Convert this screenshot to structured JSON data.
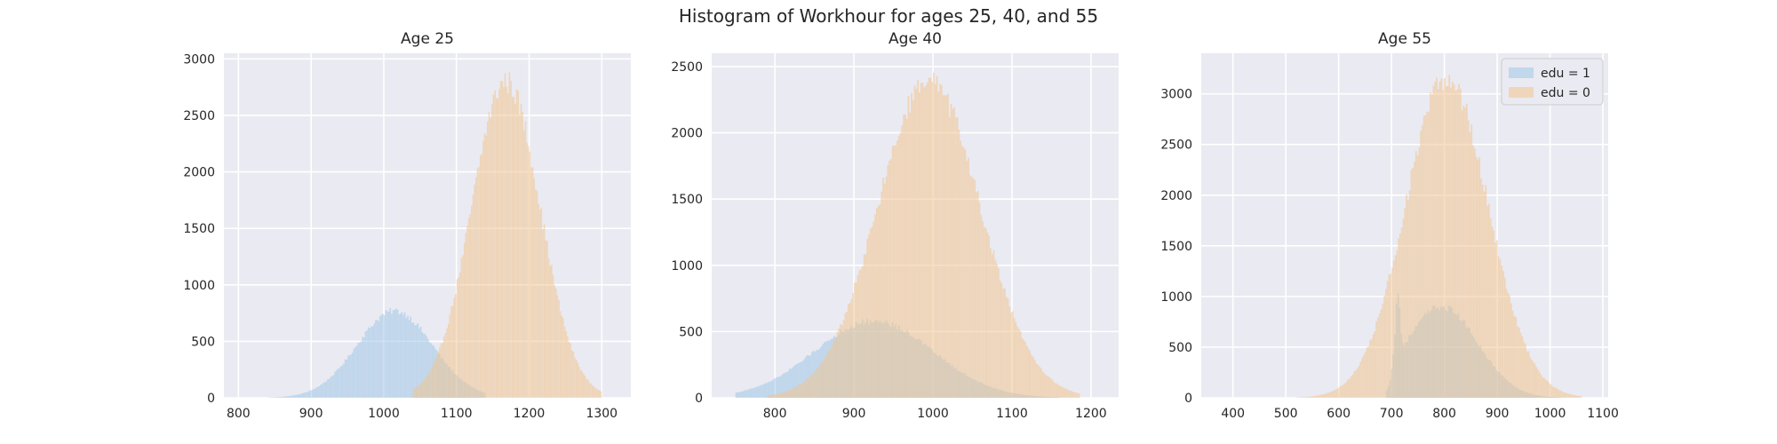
{
  "figure_title": "Histogram of Workhour for ages 25, 40, and 55",
  "colors": {
    "edu1": "#9ec7e6",
    "edu0": "#f2c48e",
    "plot_bg": "#eaeaf2",
    "grid": "#ffffff",
    "text": "#262626"
  },
  "chart_data": [
    {
      "type": "bar",
      "title": "Age 25",
      "xlim": [
        780,
        1340
      ],
      "ylim": [
        0,
        3050
      ],
      "xticks": [
        800,
        900,
        1000,
        1100,
        1200,
        1300
      ],
      "yticks": [
        0,
        500,
        1000,
        1500,
        2000,
        2500,
        3000
      ],
      "bin_width": 2,
      "grid": true,
      "series": [
        {
          "name": "edu = 1",
          "mean": 1015,
          "sd": 52,
          "peak": 770,
          "min": 840,
          "max": 1140,
          "color": "#9ec7e6"
        },
        {
          "name": "edu = 0",
          "mean": 1168,
          "sd": 47,
          "peak": 2800,
          "min": 1040,
          "max": 1300,
          "color": "#f2c48e"
        }
      ]
    },
    {
      "type": "bar",
      "title": "Age 40",
      "xlim": [
        720,
        1235
      ],
      "ylim": [
        0,
        2600
      ],
      "xticks": [
        800,
        900,
        1000,
        1100,
        1200
      ],
      "yticks": [
        0,
        500,
        1000,
        1500,
        2000,
        2500
      ],
      "bin_width": 2,
      "grid": true,
      "series": [
        {
          "name": "edu = 1",
          "mean": 925,
          "sd": 75,
          "peak": 580,
          "min": 750,
          "max": 1160,
          "color": "#9ec7e6"
        },
        {
          "name": "edu = 0",
          "mean": 995,
          "sd": 65,
          "peak": 2380,
          "min": 790,
          "max": 1185,
          "color": "#f2c48e"
        }
      ]
    },
    {
      "type": "bar",
      "title": "Age 55",
      "xlim": [
        340,
        1110
      ],
      "ylim": [
        0,
        3400
      ],
      "xticks": [
        400,
        500,
        600,
        700,
        800,
        900,
        1000,
        1100
      ],
      "yticks": [
        0,
        500,
        1000,
        1500,
        2000,
        2500,
        3000
      ],
      "bin_width": 3,
      "grid": true,
      "legend": {
        "placement": "top-right",
        "entries": [
          "edu = 1",
          "edu = 0"
        ]
      },
      "series": [
        {
          "name": "edu = 1",
          "mean": 795,
          "sd": 68,
          "peak": 900,
          "min": 690,
          "max": 1020,
          "cut": 702,
          "spike_x": 712,
          "spike_y": 1050,
          "color": "#9ec7e6"
        },
        {
          "name": "edu = 0",
          "mean": 805,
          "sd": 78,
          "peak": 3150,
          "min": 520,
          "max": 1060,
          "color": "#f2c48e"
        }
      ]
    }
  ]
}
